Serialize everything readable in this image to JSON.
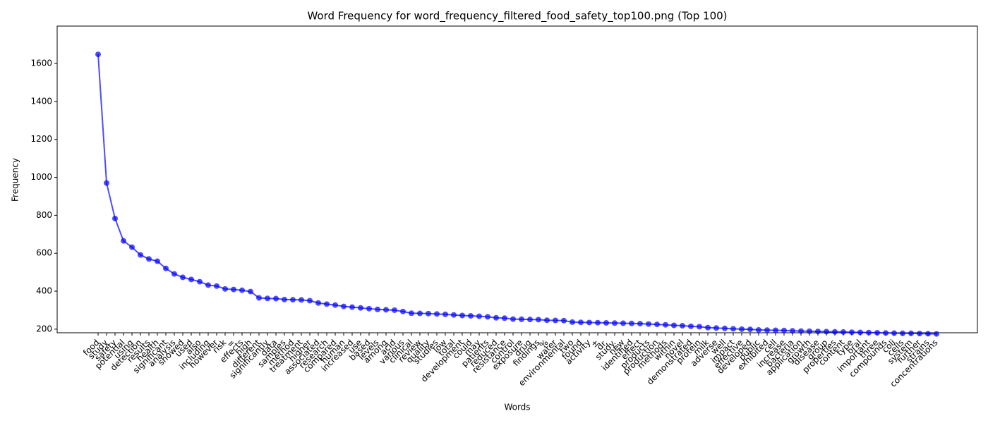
{
  "chart_data": {
    "type": "line",
    "title": "Word Frequency for word_frequency_filtered_food_safety_top100.png (Top 100)",
    "x_label": "Words",
    "y_label": "Frequency",
    "categories": [
      "food",
      "study",
      "safety",
      "potential",
      "using",
      "detection",
      "results",
      "health",
      "significant",
      "analysis",
      "showed",
      "used",
      "also",
      "including",
      "however",
      "risk",
      "=",
      "effects",
      "high",
      "different",
      "significantly",
      "data",
      "samples",
      "method",
      "treatment",
      "higher",
      "associated",
      "research",
      "compared",
      "human",
      "increased",
      "use",
      "based",
      "levels",
      "among",
      "acid",
      "various",
      "clinical",
      "review",
      "quality",
      "studies",
      "low",
      "total",
      "development",
      "could",
      "may",
      "patients",
      "reduced",
      "resistance",
      "control",
      "exposure",
      "drug",
      "findings",
      "%",
      "water",
      "environmental",
      "two",
      "found",
      "activity",
      "±",
      "dr.",
      "study.",
      "new",
      "identified",
      "effect",
      "products",
      "production",
      "methods",
      "within",
      "novel",
      "demonstrated",
      "protein",
      "milk",
      "adverse",
      "well",
      "impact",
      "effective",
      "developed",
      "public",
      "exhibited",
      "cell",
      "increase",
      "bacteria",
      "application",
      "growth",
      "disease",
      "group",
      "properties",
      "content",
      "type",
      "oral",
      "important",
      "three",
      "compounds",
      "coli",
      "cells",
      "system",
      "further",
      "strains",
      "concentrations"
    ],
    "series": [
      {
        "name": "Frequency",
        "color": "#0000ff",
        "values": [
          1648,
          970,
          783,
          665,
          632,
          591,
          570,
          558,
          520,
          491,
          473,
          462,
          450,
          432,
          427,
          412,
          409,
          405,
          398,
          365,
          362,
          361,
          356,
          355,
          354,
          350,
          338,
          332,
          327,
          320,
          316,
          312,
          308,
          304,
          302,
          300,
          293,
          284,
          283,
          282,
          280,
          278,
          275,
          272,
          270,
          268,
          265,
          260,
          258,
          253,
          252,
          251,
          250,
          247,
          246,
          245,
          237,
          236,
          235,
          234,
          233,
          232,
          231,
          230,
          229,
          227,
          225,
          223,
          220,
          218,
          215,
          213,
          208,
          206,
          204,
          202,
          200,
          199,
          196,
          195,
          194,
          193,
          191,
          190,
          189,
          188,
          187,
          186,
          185,
          184,
          183,
          182,
          181,
          180,
          179,
          178,
          178,
          177,
          176,
          175
        ]
      }
    ],
    "ylim": [
      181,
      1797
    ],
    "yticks": [
      200,
      400,
      600,
      800,
      1000,
      1200,
      1400,
      1600
    ],
    "grid": false
  }
}
